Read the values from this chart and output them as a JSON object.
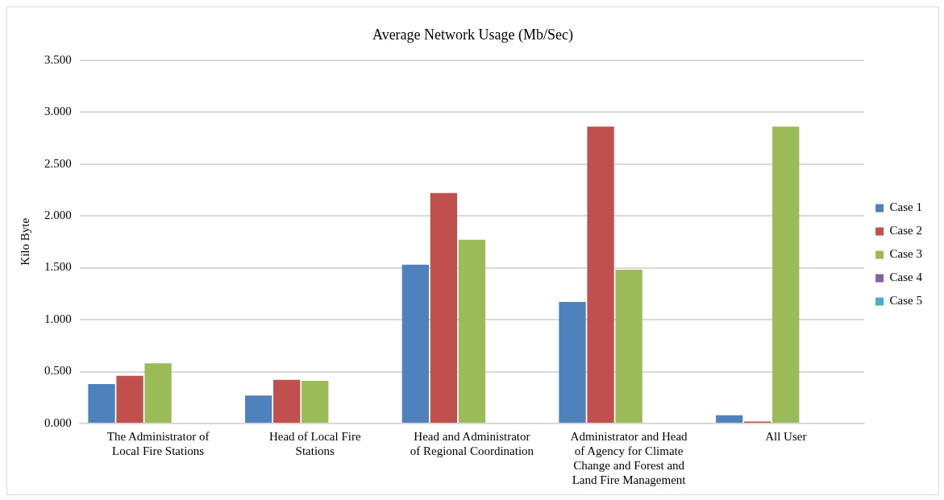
{
  "chart_data": {
    "type": "bar",
    "title": "Average Network Usage (Mb/Sec)",
    "ylabel": "Kilo Byte",
    "categories": [
      "The Administrator of Local Fire Stations",
      "Head of Local Fire Stations",
      "Head and Administrator of Regional Coordination",
      "Administrator and Head of Agency for Climate Change and Forest and Land Fire Management",
      "All User"
    ],
    "series": [
      {
        "name": "Case 1",
        "color": "#4f81bd",
        "values": [
          0.38,
          0.27,
          1.53,
          1.17,
          0.08
        ]
      },
      {
        "name": "Case 2",
        "color": "#c0504d",
        "values": [
          0.46,
          0.42,
          2.22,
          2.86,
          0.02
        ]
      },
      {
        "name": "Case 3",
        "color": "#9bbb59",
        "values": [
          0.58,
          0.41,
          1.77,
          1.48,
          2.86
        ]
      },
      {
        "name": "Case 4",
        "color": "#8064a2",
        "values": [
          0,
          0,
          0,
          0,
          0
        ]
      },
      {
        "name": "Case 5",
        "color": "#4bacc6",
        "values": [
          0,
          0,
          0,
          0,
          0
        ]
      }
    ],
    "ylim": [
      0,
      3.5
    ],
    "yticks": [
      {
        "value": 0,
        "label": "0.000"
      },
      {
        "value": 0.5,
        "label": "0.500"
      },
      {
        "value": 1,
        "label": "1.000"
      },
      {
        "value": 1.5,
        "label": "1.500"
      },
      {
        "value": 2,
        "label": "2.000"
      },
      {
        "value": 2.5,
        "label": "2.500"
      },
      {
        "value": 3,
        "label": "3.000"
      },
      {
        "value": 3.5,
        "label": "3.500"
      }
    ],
    "grid": "y",
    "legend": "right"
  }
}
